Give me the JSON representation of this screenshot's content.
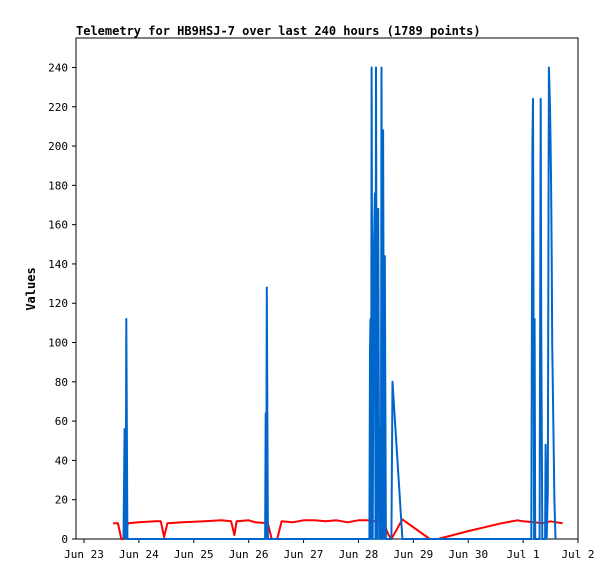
{
  "chart_data": {
    "type": "line",
    "title": "Telemetry for HB9HSJ-7 over last 240 hours (1789 points)",
    "xlabel": "",
    "ylabel": "Values",
    "xlim": [
      0,
      9.0
    ],
    "ylim": [
      0,
      255
    ],
    "yticks": [
      0,
      20,
      40,
      60,
      80,
      100,
      120,
      140,
      160,
      180,
      200,
      220,
      240
    ],
    "xticks": [
      {
        "value": 0,
        "label": "Jun 23"
      },
      {
        "value": 1,
        "label": "Jun 24"
      },
      {
        "value": 2,
        "label": "Jun 25"
      },
      {
        "value": 3,
        "label": "Jun 26"
      },
      {
        "value": 4,
        "label": "Jun 27"
      },
      {
        "value": 5,
        "label": "Jun 28"
      },
      {
        "value": 6,
        "label": "Jun 29"
      },
      {
        "value": 7,
        "label": "Jun 30"
      },
      {
        "value": 8,
        "label": "Jul 1"
      },
      {
        "value": 9,
        "label": "Jul 2"
      }
    ],
    "series": [
      {
        "color": "#000000",
        "points": [
          [
            0.53,
            0
          ],
          [
            8.72,
            0
          ]
        ]
      },
      {
        "color": "#ff0000",
        "points": [
          [
            0.53,
            8
          ],
          [
            0.62,
            8
          ],
          [
            0.68,
            0
          ],
          [
            0.74,
            0
          ],
          [
            0.8,
            8
          ],
          [
            1.0,
            8.5
          ],
          [
            1.3,
            9
          ],
          [
            1.4,
            9
          ],
          [
            1.46,
            1
          ],
          [
            1.52,
            8
          ],
          [
            1.8,
            8.5
          ],
          [
            2.2,
            9
          ],
          [
            2.5,
            9.5
          ],
          [
            2.68,
            9
          ],
          [
            2.74,
            2
          ],
          [
            2.78,
            9
          ],
          [
            3.0,
            9.5
          ],
          [
            3.12,
            8.5
          ],
          [
            3.35,
            8
          ],
          [
            3.42,
            0
          ],
          [
            3.52,
            0
          ],
          [
            3.6,
            9
          ],
          [
            3.8,
            8.5
          ],
          [
            4.0,
            9.5
          ],
          [
            4.2,
            9.5
          ],
          [
            4.4,
            9
          ],
          [
            4.6,
            9.5
          ],
          [
            4.8,
            8.5
          ],
          [
            5.0,
            9.5
          ],
          [
            5.15,
            9.5
          ],
          [
            5.3,
            9
          ],
          [
            5.45,
            9
          ],
          [
            5.55,
            2
          ],
          [
            5.6,
            0
          ],
          [
            5.8,
            10
          ],
          [
            6.3,
            0
          ],
          [
            6.45,
            0
          ],
          [
            7.0,
            4
          ],
          [
            7.6,
            8
          ],
          [
            7.9,
            9.5
          ],
          [
            8.0,
            9
          ],
          [
            8.2,
            8.5
          ],
          [
            8.35,
            8
          ],
          [
            8.5,
            9
          ],
          [
            8.6,
            8.5
          ],
          [
            8.72,
            8
          ]
        ]
      },
      {
        "color": "#0066cc",
        "points": [
          [
            0.72,
            0
          ],
          [
            0.74,
            56
          ],
          [
            0.76,
            0
          ],
          [
            0.77,
            112
          ],
          [
            0.79,
            0
          ],
          [
            3.3,
            0
          ],
          [
            3.31,
            64
          ],
          [
            3.32,
            0
          ],
          [
            3.33,
            128
          ],
          [
            3.35,
            0
          ],
          [
            5.2,
            0
          ],
          [
            5.21,
            96
          ],
          [
            5.22,
            112
          ],
          [
            5.23,
            0
          ],
          [
            5.24,
            240
          ],
          [
            5.26,
            0
          ],
          [
            5.28,
            144
          ],
          [
            5.3,
            176
          ],
          [
            5.31,
            0
          ],
          [
            5.32,
            240
          ],
          [
            5.34,
            0
          ],
          [
            5.36,
            168
          ],
          [
            5.38,
            0
          ],
          [
            5.39,
            56
          ],
          [
            5.41,
            0
          ],
          [
            5.42,
            240
          ],
          [
            5.44,
            0
          ],
          [
            5.45,
            208
          ],
          [
            5.47,
            0
          ],
          [
            5.48,
            144
          ],
          [
            5.5,
            0
          ],
          [
            5.52,
            0
          ],
          [
            5.55,
            0
          ],
          [
            5.6,
            0
          ],
          [
            5.62,
            80
          ],
          [
            5.8,
            0
          ],
          [
            8.15,
            0
          ],
          [
            8.17,
            200
          ],
          [
            8.18,
            224
          ],
          [
            8.2,
            0
          ],
          [
            8.21,
            112
          ],
          [
            8.22,
            0
          ],
          [
            8.3,
            0
          ],
          [
            8.32,
            224
          ],
          [
            8.33,
            112
          ],
          [
            8.35,
            0
          ],
          [
            8.4,
            0
          ],
          [
            8.41,
            48
          ],
          [
            8.43,
            0
          ],
          [
            8.45,
            24
          ],
          [
            8.47,
            240
          ],
          [
            8.49,
            220
          ],
          [
            8.5,
            200
          ],
          [
            8.51,
            180
          ],
          [
            8.52,
            144
          ],
          [
            8.53,
            100
          ],
          [
            8.55,
            60
          ],
          [
            8.57,
            20
          ],
          [
            8.59,
            0
          ]
        ]
      }
    ]
  }
}
